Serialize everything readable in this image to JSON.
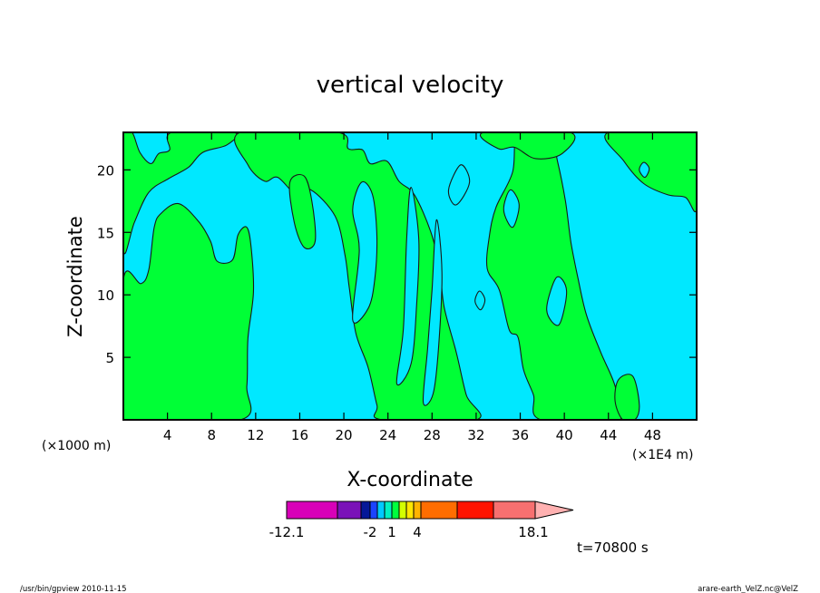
{
  "chart_data": {
    "type": "heatmap",
    "title": "vertical velocity",
    "xlabel": "X-coordinate",
    "ylabel": "Z-coordinate",
    "x_unit_left": "(×1000 m)",
    "x_unit_right": "(×1E4 m)",
    "xlim": [
      0,
      52
    ],
    "ylim": [
      0,
      23
    ],
    "x_ticks": [
      4,
      8,
      12,
      16,
      20,
      24,
      28,
      32,
      36,
      40,
      44,
      48
    ],
    "y_ticks": [
      5,
      10,
      15,
      20
    ],
    "colorbar": {
      "colors": [
        "#d800b8",
        "#7a12b8",
        "#061898",
        "#1b43ff",
        "#00c9ff",
        "#00f0c2",
        "#00ff3d",
        "#d3ff00",
        "#ffe600",
        "#ffb300",
        "#ff6d00",
        "#ff1400",
        "#f77070",
        "#ffb1b1"
      ],
      "labels": [
        "-12.1",
        "-2",
        "1",
        "4",
        "18.1"
      ]
    },
    "colors": {
      "negative_fill": "#00e8ff",
      "positive_fill": "#00ff36",
      "contour": "#181818"
    },
    "positive_regions": [
      [
        [
          0.0,
          23.0
        ],
        [
          0.8,
          23.0
        ],
        [
          1.5,
          21.4
        ],
        [
          2.5,
          20.5
        ],
        [
          3.2,
          21.3
        ],
        [
          4.2,
          21.6
        ],
        [
          4.4,
          23.0
        ],
        [
          10.0,
          23.0
        ],
        [
          9.4,
          22.0
        ],
        [
          7.2,
          21.4
        ],
        [
          5.9,
          20.2
        ],
        [
          4.1,
          19.3
        ],
        [
          2.3,
          18.2
        ],
        [
          1.0,
          15.8
        ],
        [
          0.0,
          13.6
        ]
      ],
      [
        [
          0.0,
          11.2
        ],
        [
          1.6,
          10.9
        ],
        [
          2.3,
          12.0
        ],
        [
          2.8,
          15.4
        ],
        [
          3.4,
          16.5
        ],
        [
          5.0,
          17.3
        ],
        [
          6.8,
          15.9
        ],
        [
          7.9,
          14.3
        ],
        [
          8.5,
          12.7
        ],
        [
          9.9,
          12.8
        ],
        [
          10.4,
          14.8
        ],
        [
          11.2,
          15.4
        ],
        [
          11.6,
          13.7
        ],
        [
          11.8,
          10.2
        ],
        [
          11.3,
          6.5
        ],
        [
          11.2,
          2.7
        ],
        [
          10.6,
          0.0
        ],
        [
          0.0,
          0.0
        ]
      ],
      [
        [
          10.6,
          23.0
        ],
        [
          11.3,
          20.4
        ],
        [
          12.8,
          19.1
        ],
        [
          14.0,
          19.4
        ],
        [
          15.7,
          18.0
        ],
        [
          17.0,
          18.4
        ],
        [
          19.2,
          16.3
        ],
        [
          20.1,
          13.2
        ],
        [
          20.5,
          10.5
        ],
        [
          21.1,
          6.9
        ],
        [
          22.2,
          4.2
        ],
        [
          23.0,
          1.2
        ],
        [
          23.5,
          0.0
        ],
        [
          32.0,
          0.0
        ],
        [
          31.1,
          2.0
        ],
        [
          30.2,
          5.4
        ],
        [
          29.1,
          9.0
        ],
        [
          28.7,
          12.0
        ],
        [
          27.9,
          15.0
        ],
        [
          26.4,
          18.0
        ],
        [
          25.0,
          19.1
        ],
        [
          23.9,
          20.7
        ],
        [
          22.4,
          20.5
        ],
        [
          21.7,
          21.6
        ],
        [
          20.4,
          21.7
        ],
        [
          19.4,
          23.0
        ]
      ],
      [
        [
          33.0,
          12.1
        ],
        [
          34.1,
          10.4
        ],
        [
          35.0,
          7.2
        ],
        [
          35.8,
          6.6
        ],
        [
          36.3,
          4.0
        ],
        [
          37.2,
          2.0
        ],
        [
          37.9,
          0.0
        ],
        [
          45.0,
          0.0
        ],
        [
          44.6,
          2.7
        ],
        [
          43.3,
          5.4
        ],
        [
          42.0,
          8.4
        ],
        [
          41.2,
          11.5
        ],
        [
          40.6,
          14.2
        ],
        [
          40.1,
          17.5
        ],
        [
          39.4,
          20.6
        ],
        [
          38.6,
          23.0
        ],
        [
          35.8,
          23.0
        ],
        [
          35.3,
          19.8
        ],
        [
          33.8,
          17.0
        ],
        [
          33.2,
          14.7
        ]
      ],
      [
        [
          32.7,
          23.0
        ],
        [
          34.0,
          21.7
        ],
        [
          35.5,
          21.8
        ],
        [
          37.4,
          20.9
        ],
        [
          39.8,
          21.3
        ],
        [
          40.5,
          23.0
        ]
      ],
      [
        [
          44.0,
          23.0
        ],
        [
          45.4,
          20.7
        ],
        [
          47.2,
          18.9
        ],
        [
          49.4,
          18.0
        ],
        [
          51.0,
          17.8
        ],
        [
          52.0,
          16.9
        ],
        [
          52.0,
          23.0
        ]
      ],
      [
        [
          15.1,
          19.0
        ],
        [
          16.4,
          19.5
        ],
        [
          17.1,
          17.5
        ],
        [
          17.4,
          14.3
        ],
        [
          16.4,
          13.8
        ],
        [
          15.5,
          15.8
        ]
      ],
      [
        [
          44.9,
          3.2
        ],
        [
          46.2,
          3.5
        ],
        [
          46.8,
          1.2
        ],
        [
          46.4,
          0.0
        ],
        [
          45.3,
          0.0
        ],
        [
          44.6,
          1.5
        ]
      ]
    ],
    "negative_islands": [
      [
        [
          20.8,
          8.0
        ],
        [
          21.4,
          13.6
        ],
        [
          20.8,
          16.8
        ],
        [
          21.6,
          19.0
        ],
        [
          22.6,
          18.0
        ],
        [
          23.0,
          14.7
        ],
        [
          22.8,
          11.2
        ],
        [
          22.2,
          8.9
        ]
      ],
      [
        [
          24.8,
          2.9
        ],
        [
          25.4,
          7.3
        ],
        [
          25.7,
          14.6
        ],
        [
          26.1,
          18.6
        ],
        [
          26.8,
          14.4
        ],
        [
          26.6,
          9.2
        ],
        [
          26.1,
          4.5
        ]
      ],
      [
        [
          27.2,
          1.4
        ],
        [
          27.6,
          5.7
        ],
        [
          28.0,
          10.4
        ],
        [
          28.4,
          16.0
        ],
        [
          28.9,
          11.8
        ],
        [
          28.6,
          5.9
        ],
        [
          28.1,
          2.1
        ]
      ],
      [
        [
          29.5,
          18.4
        ],
        [
          30.2,
          17.2
        ],
        [
          31.4,
          19.0
        ],
        [
          30.6,
          20.4
        ]
      ],
      [
        [
          31.9,
          9.5
        ],
        [
          32.4,
          8.8
        ],
        [
          32.8,
          9.6
        ],
        [
          32.3,
          10.3
        ]
      ],
      [
        [
          34.5,
          16.8
        ],
        [
          35.3,
          15.4
        ],
        [
          35.9,
          17.2
        ],
        [
          35.1,
          18.4
        ]
      ],
      [
        [
          38.4,
          8.8
        ],
        [
          39.5,
          7.6
        ],
        [
          40.2,
          10.3
        ],
        [
          39.3,
          11.4
        ]
      ],
      [
        [
          46.8,
          20.0
        ],
        [
          47.3,
          19.4
        ],
        [
          47.7,
          20.1
        ],
        [
          47.2,
          20.6
        ]
      ]
    ],
    "time_label": "t=70800 s",
    "footer_left": "/usr/bin/gpview  2010-11-15",
    "footer_right": "arare-earth_VelZ.nc@VelZ"
  }
}
